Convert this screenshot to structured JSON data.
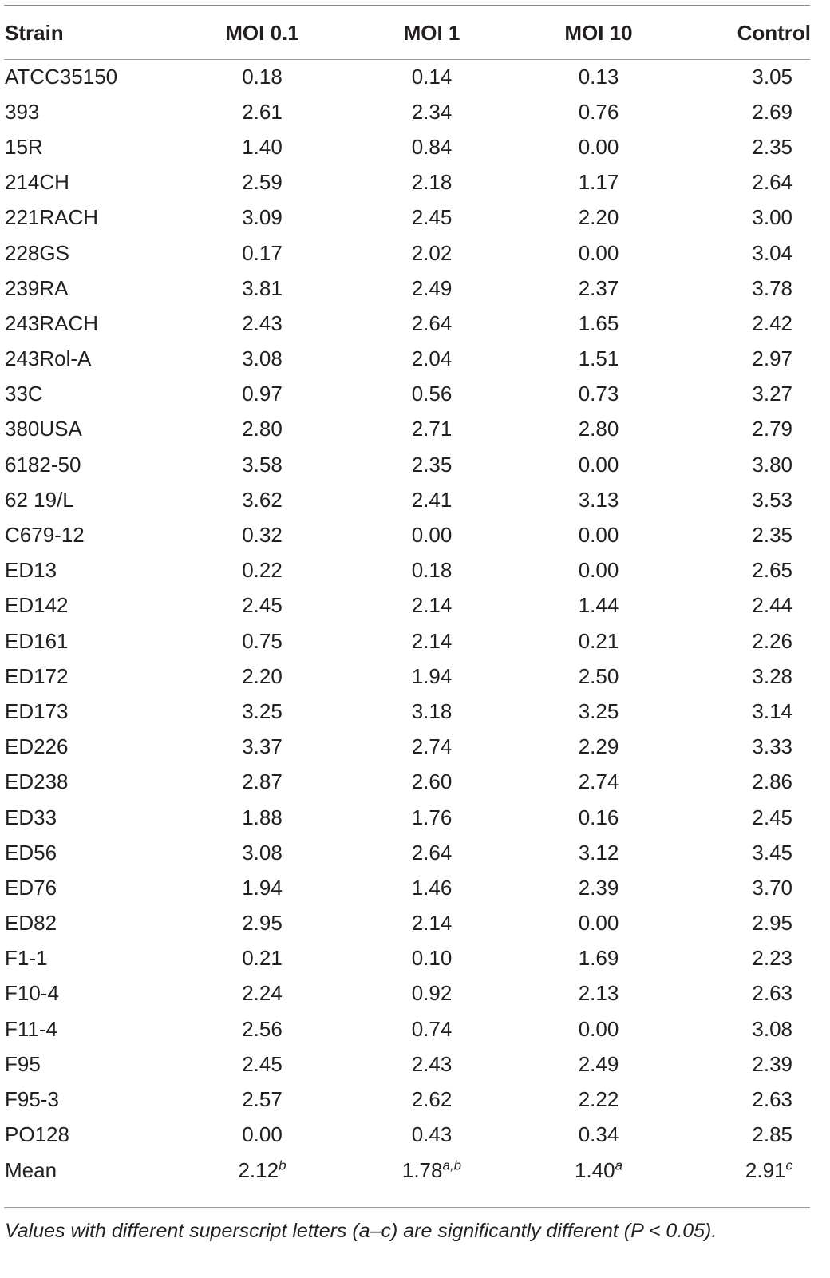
{
  "table": {
    "headers": [
      "Strain",
      "MOI 0.1",
      "MOI 1",
      "MOI 10",
      "Control"
    ],
    "rows": [
      [
        "ATCC35150",
        "0.18",
        "0.14",
        "0.13",
        "3.05"
      ],
      [
        "393",
        "2.61",
        "2.34",
        "0.76",
        "2.69"
      ],
      [
        "15R",
        "1.40",
        "0.84",
        "0.00",
        "2.35"
      ],
      [
        "214CH",
        "2.59",
        "2.18",
        "1.17",
        "2.64"
      ],
      [
        "221RACH",
        "3.09",
        "2.45",
        "2.20",
        "3.00"
      ],
      [
        "228GS",
        "0.17",
        "2.02",
        "0.00",
        "3.04"
      ],
      [
        "239RA",
        "3.81",
        "2.49",
        "2.37",
        "3.78"
      ],
      [
        "243RACH",
        "2.43",
        "2.64",
        "1.65",
        "2.42"
      ],
      [
        "243Rol-A",
        "3.08",
        "2.04",
        "1.51",
        "2.97"
      ],
      [
        "33C",
        "0.97",
        "0.56",
        "0.73",
        "3.27"
      ],
      [
        "380USA",
        "2.80",
        "2.71",
        "2.80",
        "2.79"
      ],
      [
        "6182-50",
        "3.58",
        "2.35",
        "0.00",
        "3.80"
      ],
      [
        "62 19/L",
        "3.62",
        "2.41",
        "3.13",
        "3.53"
      ],
      [
        "C679-12",
        "0.32",
        "0.00",
        "0.00",
        "2.35"
      ],
      [
        "ED13",
        "0.22",
        "0.18",
        "0.00",
        "2.65"
      ],
      [
        "ED142",
        "2.45",
        "2.14",
        "1.44",
        "2.44"
      ],
      [
        "ED161",
        "0.75",
        "2.14",
        "0.21",
        "2.26"
      ],
      [
        "ED172",
        "2.20",
        "1.94",
        "2.50",
        "3.28"
      ],
      [
        "ED173",
        "3.25",
        "3.18",
        "3.25",
        "3.14"
      ],
      [
        "ED226",
        "3.37",
        "2.74",
        "2.29",
        "3.33"
      ],
      [
        "ED238",
        "2.87",
        "2.60",
        "2.74",
        "2.86"
      ],
      [
        "ED33",
        "1.88",
        "1.76",
        "0.16",
        "2.45"
      ],
      [
        "ED56",
        "3.08",
        "2.64",
        "3.12",
        "3.45"
      ],
      [
        "ED76",
        "1.94",
        "1.46",
        "2.39",
        "3.70"
      ],
      [
        "ED82",
        "2.95",
        "2.14",
        "0.00",
        "2.95"
      ],
      [
        "F1-1",
        "0.21",
        "0.10",
        "1.69",
        "2.23"
      ],
      [
        "F10-4",
        "2.24",
        "0.92",
        "2.13",
        "2.63"
      ],
      [
        "F11-4",
        "2.56",
        "0.74",
        "0.00",
        "3.08"
      ],
      [
        "F95",
        "2.45",
        "2.43",
        "2.49",
        "2.39"
      ],
      [
        "F95-3",
        "2.57",
        "2.62",
        "2.22",
        "2.63"
      ],
      [
        "PO128",
        "0.00",
        "0.43",
        "0.34",
        "2.85"
      ]
    ],
    "mean": {
      "label": "Mean",
      "values": [
        {
          "value": "2.12",
          "sup": "b"
        },
        {
          "value": "1.78",
          "sup": "a,b"
        },
        {
          "value": "1.40",
          "sup": "a"
        },
        {
          "value": "2.91",
          "sup": "c"
        }
      ]
    }
  },
  "footnote": "Values with different superscript letters (a–c) are significantly different (P < 0.05)."
}
